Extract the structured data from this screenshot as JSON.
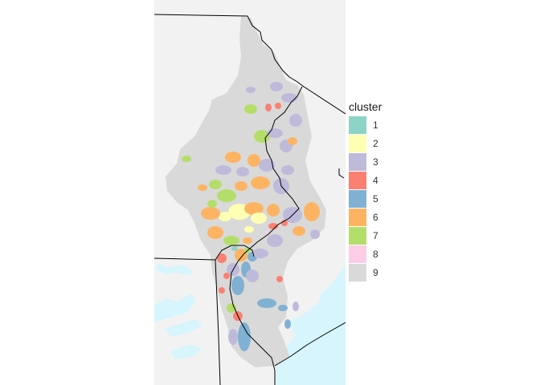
{
  "legend": {
    "title": "cluster",
    "items": [
      {
        "label": "1",
        "color": "#8DD3C7"
      },
      {
        "label": "2",
        "color": "#FFFFB3"
      },
      {
        "label": "3",
        "color": "#BEBADA"
      },
      {
        "label": "4",
        "color": "#FB8072"
      },
      {
        "label": "5",
        "color": "#80B1D3"
      },
      {
        "label": "6",
        "color": "#FDB462"
      },
      {
        "label": "7",
        "color": "#B3DE69"
      },
      {
        "label": "8",
        "color": "#FCCDE5"
      },
      {
        "label": "9",
        "color": "#D9D9D9"
      }
    ]
  },
  "map": {
    "land_color": "#F2F2F2",
    "water_color": "#D6F5FC",
    "border_color": "#000000"
  }
}
